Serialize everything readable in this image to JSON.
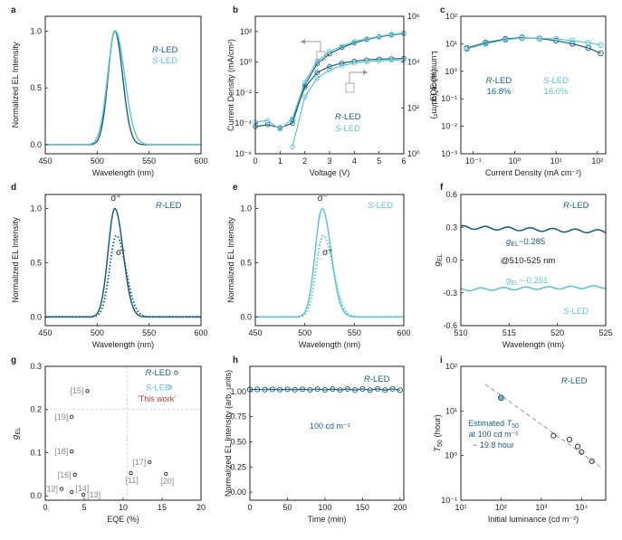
{
  "colors": {
    "r": "#1a5f80",
    "s": "#5ec3d2",
    "axis": "#222222",
    "grey": "#999999",
    "gray_label": "#8a8a8a",
    "red": "#c0392b"
  },
  "chart_data": [
    {
      "panel": "a",
      "type": "line",
      "xlabel": "Wavelength (nm)",
      "ylabel": "Normalized EL Intensity",
      "xlim": [
        450,
        600
      ],
      "ylim": [
        -0.08,
        1.13
      ],
      "xticks": [
        450,
        500,
        550,
        600
      ],
      "yticks": [
        0.0,
        0.5,
        1.0
      ],
      "legend": [
        {
          "series": "r",
          "prefix": "R",
          "suffix": "-LED"
        },
        {
          "series": "s",
          "prefix": "S",
          "suffix": "-LED"
        }
      ],
      "series": [
        {
          "name": "R-LED",
          "color": "r",
          "peak": 517,
          "width_left": 6.5,
          "width_right": 7.5
        },
        {
          "name": "S-LED",
          "color": "s",
          "peak": 517.5,
          "width_left": 7.5,
          "width_right": 9
        }
      ]
    },
    {
      "panel": "b",
      "type": "line",
      "xlabel": "Voltage (V)",
      "ylabel": "Current Density (mA/cm²)",
      "ylabel2": "Luminance (cd/m²)",
      "xlim": [
        0,
        6
      ],
      "xticks": [
        0,
        1,
        2,
        3,
        4,
        5,
        6
      ],
      "ylim_log": [
        -6,
        3
      ],
      "yticks_log": [
        -6,
        -4,
        -2,
        0,
        2
      ],
      "y2lim_log": [
        0,
        6
      ],
      "y2ticks_log": [
        0,
        2,
        4,
        6
      ],
      "legend": [
        {
          "series": "r",
          "prefix": "R",
          "suffix": "-LED"
        },
        {
          "series": "s",
          "prefix": "S",
          "suffix": "-LED"
        }
      ],
      "current_density": {
        "x": [
          0,
          0.5,
          1.0,
          1.5,
          2.0,
          2.5,
          3.0,
          3.5,
          4.0,
          4.5,
          5.0,
          5.5,
          6.0
        ],
        "R-LED": [
          6e-05,
          8e-05,
          5e-05,
          0.0001,
          0.03,
          0.8,
          3.5,
          9,
          18,
          30,
          45,
          60,
          75
        ],
        "S-LED": [
          0.00012,
          0.00015,
          4e-05,
          0.0002,
          0.05,
          1.2,
          5,
          11,
          22,
          33,
          48,
          65,
          80
        ]
      },
      "luminance": {
        "x": [
          1.5,
          2.0,
          2.5,
          3.0,
          3.5,
          4.0,
          4.5,
          5.0,
          5.5,
          6.0
        ],
        "R-LED": [
          30,
          800,
          3500,
          6500,
          9000,
          11000,
          12500,
          13500,
          14000,
          14500
        ],
        "S-LED": [
          2,
          300,
          2000,
          4500,
          7000,
          9000,
          10500,
          11500,
          12000,
          12500
        ]
      }
    },
    {
      "panel": "c",
      "type": "line",
      "xlabel": "Current Density (mA cm⁻²)",
      "ylabel": "EQE (%)",
      "xlim_log": [
        -1.3,
        2.2
      ],
      "xticks_log": [
        -1,
        0,
        1,
        2
      ],
      "ylim_log": [
        -3,
        2
      ],
      "yticks_log": [
        -3,
        -2,
        -1,
        0,
        1,
        2
      ],
      "legend": [
        {
          "series": "r",
          "prefix": "R",
          "suffix": "-LED",
          "value": "16.8%"
        },
        {
          "series": "s",
          "prefix": "S",
          "suffix": "-LED",
          "value": "16.0%"
        }
      ],
      "series": [
        {
          "name": "R-LED",
          "x": [
            0.07,
            0.2,
            0.6,
            1.5,
            4,
            10,
            25,
            60,
            120
          ],
          "y": [
            7,
            11,
            15,
            16.8,
            15.5,
            13,
            10,
            7,
            4.5
          ]
        },
        {
          "name": "S-LED",
          "x": [
            0.07,
            0.2,
            0.6,
            1.5,
            4,
            10,
            25,
            60,
            120
          ],
          "y": [
            6.5,
            10,
            14,
            16,
            16,
            15,
            13,
            11,
            9
          ]
        }
      ]
    },
    {
      "panel": "d",
      "type": "line",
      "xlabel": "Wavelength (nm)",
      "ylabel": "Normalized EL Intensity",
      "xlim": [
        450,
        600
      ],
      "ylim": [
        -0.08,
        1.13
      ],
      "xticks": [
        450,
        500,
        550,
        600
      ],
      "yticks": [
        0.0,
        0.5,
        1.0
      ],
      "legend": [
        {
          "series": "r",
          "prefix": "R",
          "suffix": "-LED"
        }
      ],
      "annotations": [
        {
          "name": "sigma-plus",
          "text": "σ⁺",
          "x": 518,
          "y": 1.07
        },
        {
          "name": "sigma-minus",
          "text": "σ⁻",
          "x": 523,
          "y": 0.57
        }
      ],
      "series": [
        {
          "name": "σ+",
          "style": "solid",
          "peak": 517,
          "amp": 1.0,
          "width_left": 6.5,
          "width_right": 8
        },
        {
          "name": "σ-",
          "style": "dotted",
          "peak": 518.5,
          "amp": 0.75,
          "width_left": 6.5,
          "width_right": 9
        }
      ]
    },
    {
      "panel": "e",
      "type": "line",
      "xlabel": "Wavelength (nm)",
      "ylabel": "Normalized EL Intensity",
      "xlim": [
        450,
        600
      ],
      "ylim": [
        -0.08,
        1.13
      ],
      "xticks": [
        450,
        500,
        550,
        600
      ],
      "yticks": [
        0.0,
        0.5,
        1.0
      ],
      "legend": [
        {
          "series": "s",
          "prefix": "S",
          "suffix": "-LED"
        }
      ],
      "annotations": [
        {
          "name": "sigma-minus",
          "text": "σ⁻",
          "x": 518,
          "y": 1.07
        },
        {
          "name": "sigma-plus",
          "text": "σ⁺",
          "x": 523,
          "y": 0.57
        }
      ],
      "series": [
        {
          "name": "σ-",
          "style": "solid",
          "peak": 517.5,
          "amp": 1.0,
          "width_left": 7,
          "width_right": 9
        },
        {
          "name": "σ+",
          "style": "dotted",
          "peak": 518.5,
          "amp": 0.75,
          "width_left": 7,
          "width_right": 10
        }
      ]
    },
    {
      "panel": "f",
      "type": "line",
      "xlabel": "Wavelength (nm)",
      "ylabel": "g_EL",
      "xlim": [
        510,
        525
      ],
      "ylim": [
        -0.6,
        0.6
      ],
      "xticks": [
        510,
        515,
        520,
        525
      ],
      "yticks": [
        -0.6,
        -0.3,
        0.0,
        0.3,
        0.6
      ],
      "labels": {
        "r_led": "R-LED",
        "s_led": "S-LED",
        "g_r": "~0.285",
        "g_s": "~-0.251",
        "range": "@510-525 nm"
      },
      "series": [
        {
          "name": "R-LED",
          "base": 0.3,
          "end": 0.26,
          "ripple": 0.015
        },
        {
          "name": "S-LED",
          "base": -0.27,
          "end": -0.245,
          "ripple": 0.012
        }
      ]
    },
    {
      "panel": "g",
      "type": "scatter",
      "xlabel": "EQE (%)",
      "ylabel": "g_EL",
      "xlim": [
        0,
        20
      ],
      "ylim": [
        -0.01,
        0.3
      ],
      "xticks": [
        0,
        5,
        10,
        15,
        20
      ],
      "yticks": [
        0.0,
        0.1,
        0.2,
        0.3
      ],
      "legend": [
        {
          "series": "r",
          "prefix": "R",
          "suffix": "-LED"
        },
        {
          "series": "s",
          "prefix": "S",
          "suffix": "-LED"
        }
      ],
      "this_work_label": "'This work'",
      "guides": {
        "x": 10.5,
        "y": 0.2
      },
      "this_work": [
        {
          "series": "r",
          "x": 16.8,
          "y": 0.285
        },
        {
          "series": "s",
          "x": 16.0,
          "y": 0.251
        }
      ],
      "points": [
        {
          "ref": "[15]",
          "x": 5.4,
          "y": 0.243
        },
        {
          "ref": "[19]",
          "x": 3.4,
          "y": 0.183
        },
        {
          "ref": "[18]",
          "x": 3.4,
          "y": 0.103
        },
        {
          "ref": "[16]",
          "x": 3.8,
          "y": 0.049
        },
        {
          "ref": "[12]",
          "x": 2.1,
          "y": 0.016
        },
        {
          "ref": "[14]",
          "x": 3.4,
          "y": 0.009
        },
        {
          "ref": "[13]",
          "x": 4.9,
          "y": 0.003
        },
        {
          "ref": "[17]",
          "x": 13.4,
          "y": 0.078
        },
        {
          "ref": "[11]",
          "x": 11.0,
          "y": 0.053
        },
        {
          "ref": "[20]",
          "x": 15.5,
          "y": 0.051
        }
      ]
    },
    {
      "panel": "h",
      "type": "line",
      "xlabel": "Time (min)",
      "ylabel": "Normalized EL Intensity (arb. units)",
      "xlim": [
        0,
        205
      ],
      "ylim": [
        -0.08,
        1.25
      ],
      "xticks": [
        0,
        50,
        100,
        150,
        200
      ],
      "yticks": [
        0.0,
        0.25,
        0.5,
        0.75,
        1.0
      ],
      "legend": [
        {
          "series": "r",
          "prefix": "R",
          "suffix": "-LED"
        }
      ],
      "condition_label": "100 cd m⁻²",
      "series": [
        {
          "name": "R-LED",
          "x_step": 10,
          "x_max": 200,
          "mean": 1.02,
          "ripple": 0.01
        }
      ]
    },
    {
      "panel": "i",
      "type": "scatter",
      "xlabel": "Initial luminance (cd m⁻²)",
      "ylabel": "T50 (hour)",
      "xlim_log": [
        1,
        4.6
      ],
      "xticks_log": [
        1,
        2,
        3,
        4
      ],
      "ylim_log": [
        -1,
        2
      ],
      "yticks_log": [
        -1,
        0,
        1,
        2
      ],
      "legend": [
        {
          "series": "r",
          "prefix": "R",
          "suffix": "-LED"
        }
      ],
      "estimate_lines": [
        "Estimated T50",
        "at 100 cd m⁻²",
        "~ 19.8 hour"
      ],
      "estimated": {
        "x": 100,
        "y": 19.8
      },
      "fit": {
        "x1": 40,
        "y1": 40,
        "x2": 30000,
        "y2": 0.55
      },
      "measured": {
        "x": [
          2000,
          5000,
          8000,
          10000,
          18000
        ],
        "y": [
          2.8,
          2.3,
          1.6,
          1.2,
          0.75
        ]
      }
    }
  ]
}
